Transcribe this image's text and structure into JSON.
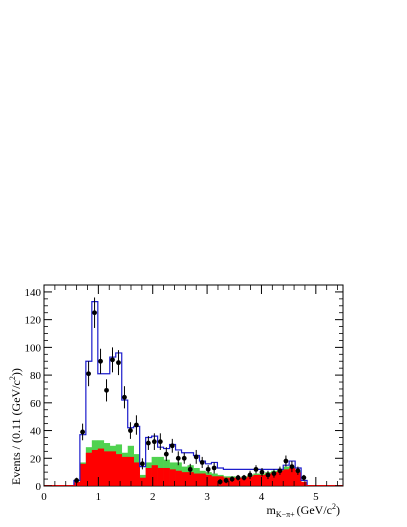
{
  "chart_data": {
    "type": "histogram",
    "xlabel": "m",
    "xlabel_sub": "K−π+",
    "xlabel_unit": "(GeV/c",
    "xlabel_unit_sup": "2",
    "xlabel_unit_close": ")",
    "ylabel": "Events / (0.11 (GeV/c",
    "ylabel_sup": "2",
    "ylabel_close": "))",
    "xlim": [
      0,
      5.5
    ],
    "ylim": [
      0,
      145
    ],
    "xticks": [
      0,
      1,
      2,
      3,
      4,
      5
    ],
    "xtick_labels": [
      "0",
      "1",
      "2",
      "3",
      "4",
      "5"
    ],
    "yticks": [
      0,
      20,
      40,
      60,
      80,
      100,
      120,
      140
    ],
    "ytick_labels": [
      "0",
      "20",
      "40",
      "60",
      "80",
      "100",
      "120",
      "140"
    ],
    "colors": {
      "total": "#1c1ccc",
      "green": "#4fd24f",
      "red": "#ff0000",
      "points": "#000000",
      "baseline": "#d40000"
    },
    "bin_edges": [
      0.55,
      0.66,
      0.77,
      0.88,
      0.99,
      1.1,
      1.21,
      1.32,
      1.43,
      1.54,
      1.65,
      1.76,
      1.87,
      1.98,
      2.09,
      2.2,
      2.31,
      2.42,
      2.53,
      2.64,
      2.75,
      2.86,
      2.97,
      3.08,
      3.19,
      3.3,
      3.41,
      3.52,
      3.63,
      3.74,
      3.85,
      3.96,
      4.07,
      4.18,
      4.29,
      4.4,
      4.51,
      4.62,
      4.73,
      4.84
    ],
    "series": [
      {
        "kind": "total_fit",
        "values": [
          4,
          37,
          90,
          133,
          81,
          81,
          93,
          96,
          62,
          42,
          43,
          14,
          35,
          36,
          28,
          27,
          30,
          26,
          24,
          24,
          22,
          18,
          16,
          17,
          13,
          12,
          12,
          12,
          12,
          12,
          12,
          12,
          12,
          12,
          12,
          15,
          18,
          13,
          4
        ]
      },
      {
        "kind": "green_component",
        "values": [
          3,
          17,
          28,
          33,
          33,
          31,
          29,
          30,
          24,
          29,
          23,
          8,
          17,
          21,
          21,
          19,
          17,
          17,
          14,
          15,
          13,
          11,
          10,
          9,
          8,
          7,
          7,
          6,
          7,
          8,
          9,
          9,
          10,
          11,
          12,
          14,
          14,
          11,
          3
        ]
      },
      {
        "kind": "red_component",
        "values": [
          3,
          16,
          24,
          26,
          27,
          25,
          25,
          23,
          21,
          21,
          17,
          6,
          13,
          15,
          13,
          13,
          12,
          11,
          10,
          10,
          9,
          9,
          8,
          7,
          7,
          6,
          6,
          6,
          6,
          7,
          8,
          8,
          9,
          10,
          11,
          12,
          13,
          10,
          3
        ]
      },
      {
        "kind": "data_points",
        "x": [
          0.6,
          0.71,
          0.82,
          0.93,
          1.04,
          1.15,
          1.26,
          1.37,
          1.48,
          1.59,
          1.7,
          1.81,
          1.92,
          2.03,
          2.14,
          2.25,
          2.36,
          2.47,
          2.58,
          2.69,
          2.8,
          2.91,
          3.02,
          3.13,
          3.24,
          3.35,
          3.46,
          3.57,
          3.68,
          3.79,
          3.9,
          4.01,
          4.12,
          4.23,
          4.34,
          4.45,
          4.56,
          4.67,
          4.78
        ],
        "y": [
          4,
          39,
          81,
          125,
          90,
          69,
          91,
          89,
          64,
          40,
          44,
          16,
          31,
          32,
          32,
          23,
          29,
          20,
          20,
          12,
          21,
          17,
          12,
          13,
          3,
          4,
          5,
          6,
          6,
          8,
          12,
          10,
          8,
          9,
          11,
          18,
          14,
          11,
          6
        ],
        "err": [
          2,
          6,
          9,
          11,
          9,
          8,
          9,
          9,
          8,
          6,
          7,
          4,
          5,
          6,
          6,
          5,
          5,
          5,
          4,
          4,
          5,
          4,
          3,
          4,
          2,
          2,
          2,
          2,
          2,
          3,
          3,
          3,
          3,
          3,
          3,
          4,
          4,
          3,
          2
        ]
      }
    ]
  }
}
